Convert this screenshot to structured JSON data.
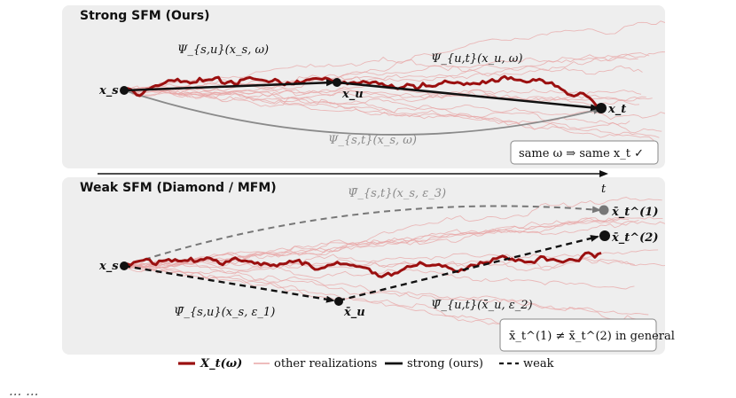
{
  "strong_panel": {
    "title": "Strong SFM (Ours)",
    "start_label": "x_s",
    "mid_label": "x_u",
    "end_label": "x_t",
    "psi_su": "Ψ_{s,u}(x_s, ω)",
    "psi_ut": "Ψ_{u,t}(x_u, ω)",
    "psi_st": "Ψ_{s,t}(x_s, ω)",
    "callout": "same ω ⇒ same x_t ✓"
  },
  "time_axis": {
    "label": "t"
  },
  "weak_panel": {
    "title": "Weak SFM (Diamond / MFM)",
    "start_label": "x_s",
    "mid_label": "x̄_u",
    "end1_label": "x̄_t^(1)",
    "end2_label": "x̄_t^(2)",
    "psi_st": "Ψ̄_{s,t}(x_s, ε_3)",
    "psi_su": "Ψ̄_{s,u}(x_s, ε_1)",
    "psi_ut": "Ψ̄_{u,t}(x̄_u, ε_2)",
    "callout": "x̄_t^(1) ≠ x̄_t^(2) in general"
  },
  "legend": {
    "items": [
      {
        "label": "X_t(ω)",
        "color": "#9b1010"
      },
      {
        "label": "other realizations",
        "color": "#e8a6a6"
      },
      {
        "label": "strong (ours)",
        "color": "#111111"
      },
      {
        "label": "weak",
        "color": "#111111"
      }
    ]
  },
  "caption": "... ..."
}
